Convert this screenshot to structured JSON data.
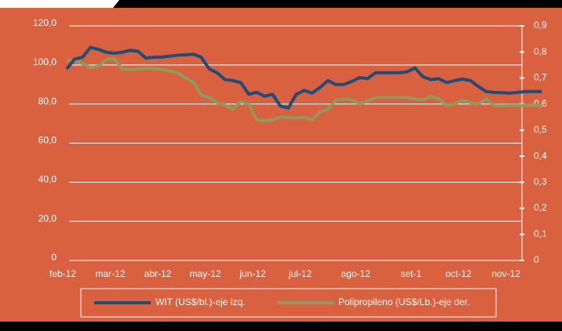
{
  "chart_data": {
    "type": "line",
    "categories": [
      "feb-12",
      null,
      null,
      null,
      null,
      null,
      "mar-12",
      null,
      null,
      null,
      null,
      null,
      "abr-12",
      null,
      null,
      null,
      null,
      null,
      "may-12",
      null,
      null,
      null,
      null,
      null,
      "jun-12",
      null,
      null,
      null,
      null,
      null,
      "jul-12",
      null,
      null,
      null,
      null,
      null,
      null,
      "ago-12",
      null,
      null,
      null,
      null,
      null,
      null,
      "set-1",
      null,
      null,
      null,
      null,
      null,
      "oct-12",
      null,
      null,
      null,
      null,
      null,
      "nov-12",
      null,
      null,
      null,
      null
    ],
    "series": [
      {
        "name": "WIT (US$/bl.)-eje izq.",
        "color": "#1b4f7a",
        "values": [
          98,
          103,
          104,
          109,
          108,
          106.5,
          106,
          106.5,
          107.5,
          107,
          103.5,
          104,
          104,
          104.5,
          105,
          105.2,
          105.5,
          104,
          98,
          96,
          92.5,
          92,
          91,
          85,
          86,
          84,
          85,
          79,
          78,
          85,
          87,
          85.6,
          88.5,
          92,
          90,
          90,
          91.5,
          93.5,
          93,
          96,
          96,
          96,
          96,
          96.5,
          98.5,
          94,
          92.5,
          93,
          91,
          92,
          92.8,
          92,
          89,
          86.4,
          86,
          85.8,
          85.6,
          86,
          86.4,
          86.4,
          86.4
        ]
      },
      {
        "name": "Polipropileno (US$/Lb.)-eje der.",
        "color": "#8f9a5e",
        "axis": "y2",
        "values": [
          0.77,
          0.765,
          0.755,
          0.74,
          0.745,
          0.77,
          0.775,
          0.735,
          0.732,
          0.735,
          0.736,
          0.737,
          0.733,
          0.728,
          0.72,
          0.7,
          0.685,
          0.634,
          0.625,
          0.605,
          0.595,
          0.58,
          0.61,
          0.6,
          0.54,
          0.535,
          0.54,
          0.55,
          0.548,
          0.546,
          0.55,
          0.54,
          0.57,
          0.58,
          0.615,
          0.62,
          0.616,
          0.6,
          0.61,
          0.625,
          0.625,
          0.625,
          0.625,
          0.625,
          0.62,
          0.616,
          0.63,
          0.62,
          0.595,
          0.6,
          0.615,
          0.605,
          0.6,
          0.62,
          0.595,
          0.594,
          0.595,
          0.595,
          0.595,
          0.595,
          0.595
        ]
      }
    ],
    "ylim": [
      0,
      120
    ],
    "yticks": [
      0,
      {
        "value": 20,
        "label": "20,0"
      },
      {
        "value": 40,
        "label": "40,0"
      },
      {
        "value": 60,
        "label": "60,0"
      },
      {
        "value": 80,
        "label": "80,0"
      },
      {
        "value": 100,
        "label": "100,0"
      },
      {
        "value": 120,
        "label": "120,0"
      }
    ],
    "y2lim": [
      0,
      0.9
    ],
    "y2ticks": [
      0,
      {
        "value": 0.1,
        "label": "0,1"
      },
      {
        "value": 0.2,
        "label": "0,2"
      },
      {
        "value": 0.3,
        "label": "0,3"
      },
      {
        "value": 0.4,
        "label": "0,4"
      },
      {
        "value": 0.5,
        "label": "0,5"
      },
      {
        "value": 0.6,
        "label": "0,6"
      },
      {
        "value": 0.7,
        "label": "0,7"
      },
      {
        "value": 0.8,
        "label": "0,8"
      },
      {
        "value": 0.9,
        "label": "0,9"
      }
    ],
    "grid": true,
    "legend": "bottom"
  }
}
